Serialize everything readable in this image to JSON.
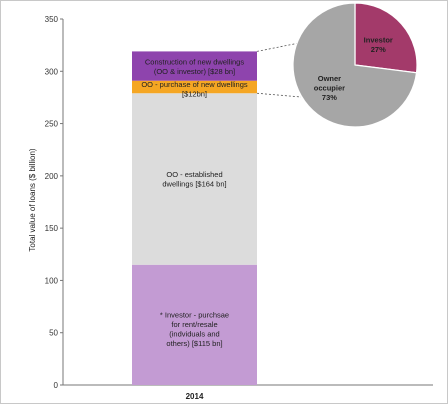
{
  "chart_data": [
    {
      "type": "bar",
      "stacked": true,
      "categories": [
        "2014"
      ],
      "ylabel": "Total value of loans ($ billion)",
      "ylim": [
        0,
        350
      ],
      "yticks": [
        0,
        50,
        100,
        150,
        200,
        250,
        300,
        350
      ],
      "grid": false,
      "series": [
        {
          "key": "investor_purchase",
          "lines": [
            "* Investor - purchsae",
            "for rent/resale",
            "(indviduals and",
            "others) [$115 bn]"
          ],
          "values": [
            115
          ],
          "color": "#c39bd3",
          "text_color": "#222222"
        },
        {
          "key": "oo_established",
          "lines": [
            "OO - established",
            "dwellings [$164 bn]"
          ],
          "values": [
            164
          ],
          "color": "#dcdcdc",
          "text_color": "#222222"
        },
        {
          "key": "oo_new",
          "lines": [
            "OO - purchase of new dwellings",
            "[$12bn]"
          ],
          "values": [
            12
          ],
          "color": "#f5a623",
          "text_color": "#222222"
        },
        {
          "key": "construction",
          "lines": [
            "Construction of new dwellings",
            "(OO & investor) [$28 bn]"
          ],
          "values": [
            28
          ],
          "color": "#8e44ad",
          "text_color": "#222222"
        }
      ]
    },
    {
      "type": "pie",
      "slices": [
        {
          "lines": [
            "Investor",
            "27%"
          ],
          "value": 27,
          "color": "#a33a6a"
        },
        {
          "lines": [
            "Owner",
            "occupier",
            "73%"
          ],
          "value": 73,
          "color": "#a6a6a6"
        }
      ]
    }
  ]
}
